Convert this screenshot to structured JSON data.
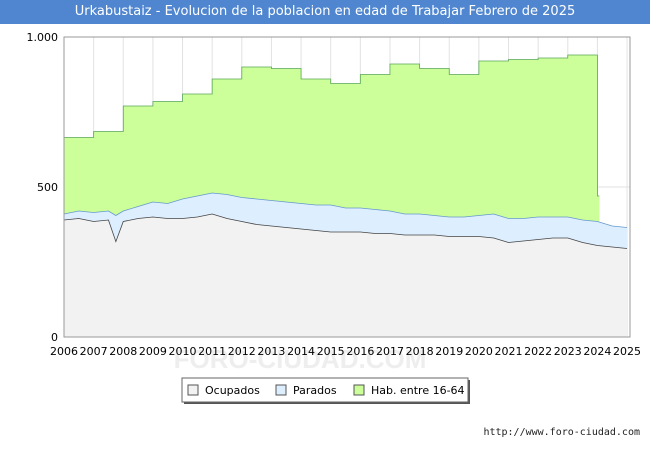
{
  "chart_data": {
    "type": "area",
    "title": "Urkabustaiz - Evolucion de la poblacion en edad de Trabajar Febrero de 2025",
    "xlabel": "",
    "ylabel": "",
    "ylim": [
      0,
      1000
    ],
    "xlim": [
      2006,
      2025.1
    ],
    "y_ticks": [
      0,
      500,
      1000
    ],
    "y_tick_labels": [
      "0",
      "500",
      "1.000"
    ],
    "x_ticks": [
      2006,
      2007,
      2008,
      2009,
      2010,
      2011,
      2012,
      2013,
      2014,
      2015,
      2016,
      2017,
      2018,
      2019,
      2020,
      2021,
      2022,
      2023,
      2024,
      2025
    ],
    "x_tick_labels": [
      "2006",
      "2007",
      "2008",
      "2009",
      "2010",
      "2011",
      "2012",
      "2013",
      "2014",
      "2015",
      "2016",
      "2017",
      "2018",
      "2019",
      "2020",
      "2021",
      "2022",
      "2023",
      "2024",
      "2025"
    ],
    "grid": true,
    "legend_position": "bottom-center",
    "series": [
      {
        "name": "Hab. entre 16-64",
        "color": "#ccff99",
        "line_color": "#5aa55a",
        "step": true,
        "x": [
          2006,
          2007,
          2008,
          2009,
          2010,
          2011,
          2012,
          2013,
          2014,
          2015,
          2016,
          2017,
          2018,
          2019,
          2020,
          2021,
          2022,
          2023,
          2024
        ],
        "values": [
          665,
          685,
          770,
          785,
          810,
          860,
          900,
          895,
          860,
          845,
          875,
          910,
          895,
          875,
          920,
          925,
          930,
          940,
          470
        ]
      },
      {
        "name": "Parados",
        "color": "#ddeeff",
        "line_color": "#6699cc",
        "x": [
          2006,
          2006.5,
          2007,
          2007.5,
          2007.75,
          2008,
          2008.5,
          2009,
          2009.5,
          2010,
          2010.5,
          2011,
          2011.5,
          2012,
          2012.5,
          2013,
          2013.5,
          2014,
          2014.5,
          2015,
          2015.5,
          2016,
          2016.5,
          2017,
          2017.5,
          2018,
          2018.5,
          2019,
          2019.5,
          2020,
          2020.5,
          2021,
          2021.5,
          2022,
          2022.5,
          2023,
          2023.5,
          2024,
          2024.5,
          2025
        ],
        "values": [
          410,
          420,
          415,
          420,
          405,
          420,
          435,
          450,
          445,
          460,
          470,
          480,
          475,
          465,
          460,
          455,
          450,
          445,
          440,
          440,
          430,
          430,
          425,
          420,
          410,
          410,
          405,
          400,
          400,
          405,
          410,
          395,
          395,
          400,
          400,
          400,
          390,
          385,
          370,
          365
        ]
      },
      {
        "name": "Ocupados",
        "color": "#f2f2f2",
        "line_color": "#444444",
        "x": [
          2006,
          2006.5,
          2007,
          2007.5,
          2007.75,
          2008,
          2008.5,
          2009,
          2009.5,
          2010,
          2010.5,
          2011,
          2011.5,
          2012,
          2012.5,
          2013,
          2013.5,
          2014,
          2014.5,
          2015,
          2015.5,
          2016,
          2016.5,
          2017,
          2017.5,
          2018,
          2018.5,
          2019,
          2019.5,
          2020,
          2020.5,
          2021,
          2021.5,
          2022,
          2022.5,
          2023,
          2023.5,
          2024,
          2024.5,
          2025
        ],
        "values": [
          390,
          395,
          385,
          390,
          318,
          385,
          395,
          400,
          395,
          395,
          400,
          410,
          395,
          385,
          375,
          370,
          365,
          360,
          355,
          350,
          350,
          350,
          345,
          345,
          340,
          340,
          340,
          335,
          335,
          335,
          330,
          315,
          320,
          325,
          330,
          330,
          315,
          305,
          300,
          295
        ]
      }
    ],
    "legend": [
      "Ocupados",
      "Parados",
      "Hab. entre 16-64"
    ]
  },
  "footer": {
    "url": "http://www.foro-ciudad.com"
  },
  "watermark": "FORO-CIUDAD.COM"
}
